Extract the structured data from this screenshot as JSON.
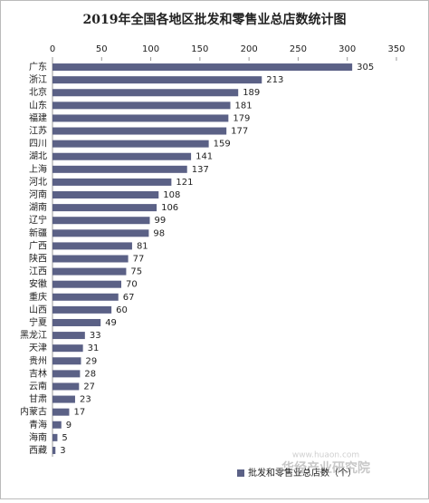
{
  "chart_data": {
    "type": "bar",
    "orientation": "horizontal",
    "title": "2019年全国各地区批发和零售业总店数统计图",
    "categories": [
      "广东",
      "浙江",
      "北京",
      "山东",
      "福建",
      "江苏",
      "四川",
      "湖北",
      "上海",
      "河北",
      "河南",
      "湖南",
      "辽宁",
      "新疆",
      "广西",
      "陕西",
      "江西",
      "安徽",
      "重庆",
      "山西",
      "宁夏",
      "黑龙江",
      "天津",
      "贵州",
      "吉林",
      "云南",
      "甘肃",
      "内蒙古",
      "青海",
      "海南",
      "西藏"
    ],
    "series": [
      {
        "name": "批发和零售业总店数（个）",
        "color": "#5b6186",
        "values": [
          305,
          213,
          189,
          181,
          179,
          177,
          159,
          141,
          137,
          121,
          108,
          106,
          99,
          98,
          81,
          77,
          75,
          70,
          67,
          60,
          49,
          33,
          31,
          29,
          28,
          27,
          23,
          17,
          9,
          5,
          3
        ]
      }
    ],
    "xlim": [
      0,
      350
    ],
    "xticks": [
      0,
      50,
      100,
      150,
      200,
      250,
      300,
      350
    ],
    "grid": false,
    "legend": "bottom-right"
  },
  "watermark": {
    "text": "华经产业研究院",
    "url": "www.huaon.com"
  }
}
